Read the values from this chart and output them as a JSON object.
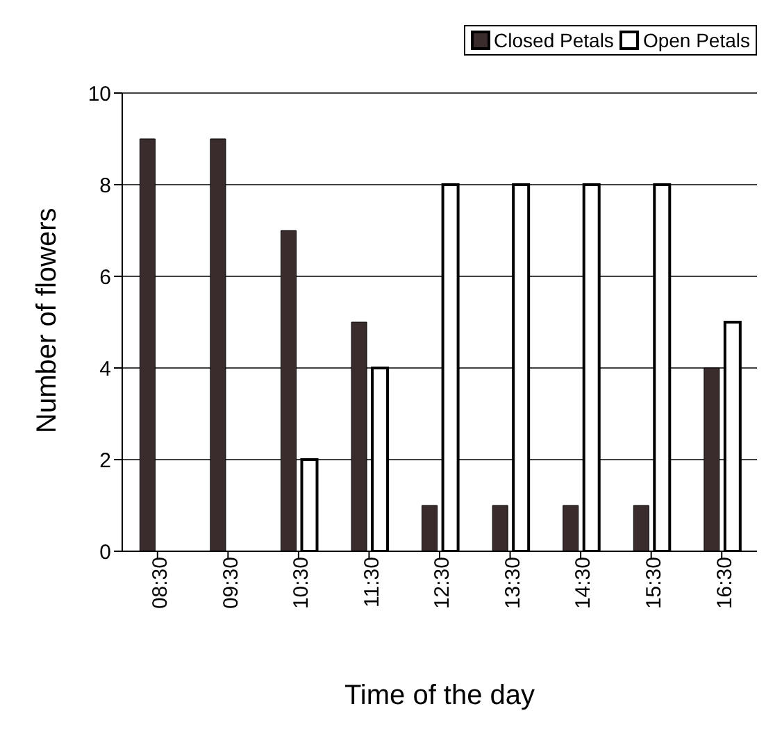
{
  "chart_data": {
    "type": "bar",
    "xlabel": "Time of the day",
    "ylabel": "Number of flowers",
    "categories": [
      "08:30",
      "09:30",
      "10:30",
      "11:30",
      "12:30",
      "13:30",
      "14:30",
      "15:30",
      "16:30"
    ],
    "series": [
      {
        "name": "Closed Petals",
        "color": "#3a2c2c",
        "values": [
          9,
          9,
          7,
          5,
          1,
          1,
          1,
          1,
          4
        ]
      },
      {
        "name": "Open Petals",
        "color": "#ffffff",
        "values": [
          0,
          0,
          2,
          4,
          8,
          8,
          8,
          8,
          5
        ]
      }
    ],
    "ylim": [
      0,
      10
    ],
    "yticks": [
      0,
      2,
      4,
      6,
      8,
      10
    ],
    "grid": "y",
    "legend": "top right"
  }
}
